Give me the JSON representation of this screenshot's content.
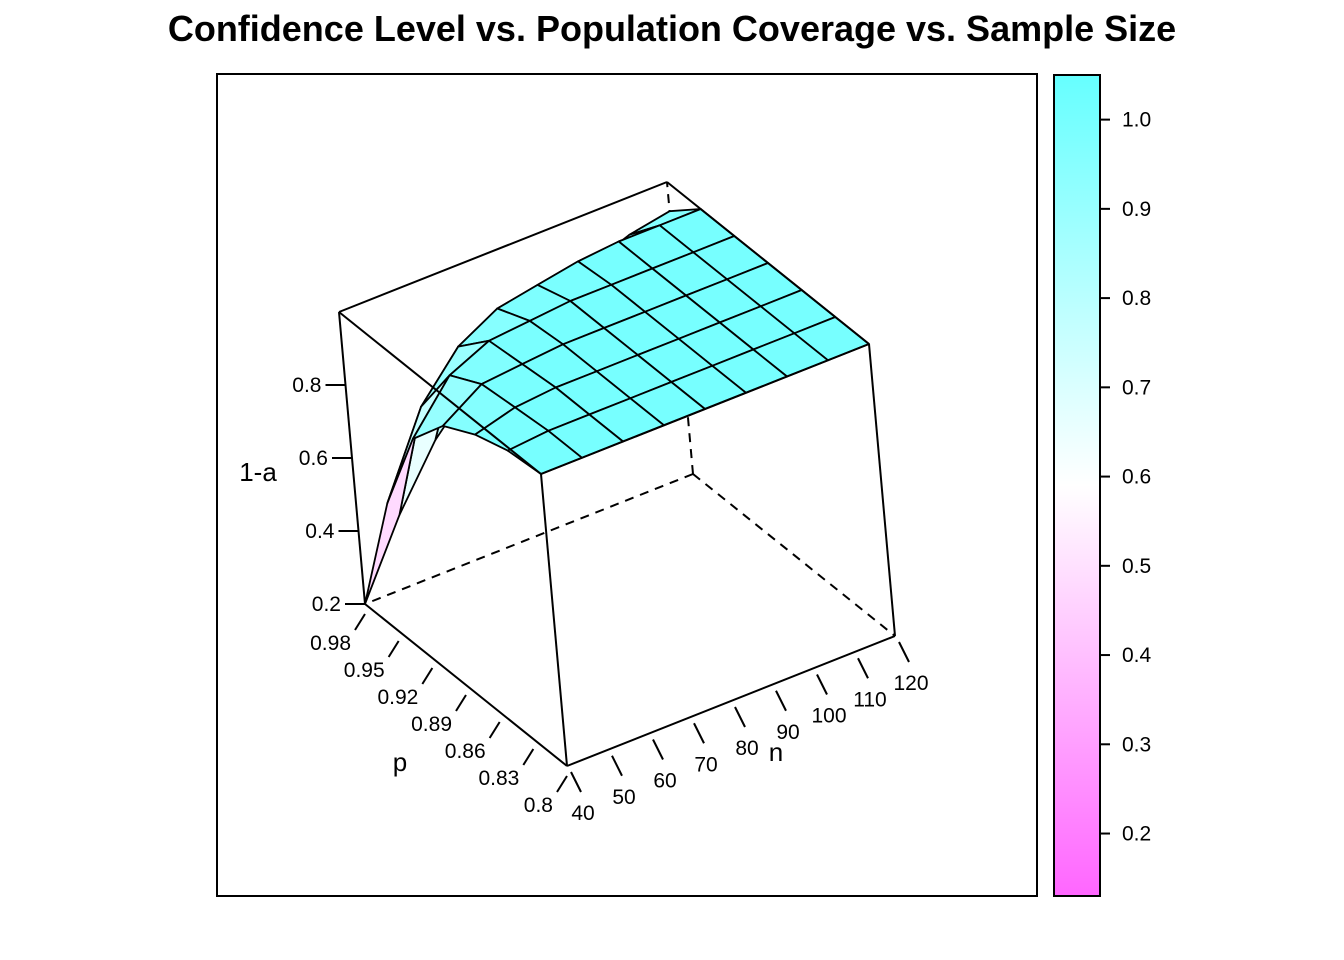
{
  "chart_data": {
    "type": "surface3d",
    "title": "Confidence Level vs. Population Coverage vs. Sample Size",
    "zlabel": "1-a",
    "xlabel": "p",
    "ylabel": "n",
    "p_values": [
      0.98,
      0.95,
      0.92,
      0.89,
      0.86,
      0.83,
      0.8
    ],
    "p_tick_labels": [
      "0.98",
      "0.95",
      "0.92",
      "0.89",
      "0.86",
      "0.83",
      "0.8"
    ],
    "n_values": [
      40,
      50,
      60,
      70,
      80,
      90,
      100,
      110,
      120
    ],
    "n_tick_labels": [
      "40",
      "50",
      "60",
      "70",
      "80",
      "90",
      "100",
      "110",
      "120"
    ],
    "z_ticks": [
      0.2,
      0.4,
      0.6,
      0.8
    ],
    "z_tick_labels": [
      "0.2",
      "0.4",
      "0.6",
      "0.8"
    ],
    "zlim": [
      0.2,
      1.0
    ],
    "surface_z": [
      [
        0.2,
        0.4,
        0.56,
        0.67,
        0.75,
        0.82,
        0.86,
        0.9,
        0.92
      ],
      [
        0.55,
        0.77,
        0.89,
        0.95,
        0.97,
        0.99,
        1.0,
        1.0,
        1.0
      ],
      [
        0.8,
        0.93,
        0.98,
        0.99,
        1.0,
        1.0,
        1.0,
        1.0,
        1.0
      ],
      [
        0.91,
        0.98,
        0.99,
        1.0,
        1.0,
        1.0,
        1.0,
        1.0,
        1.0
      ],
      [
        0.96,
        0.99,
        1.0,
        1.0,
        1.0,
        1.0,
        1.0,
        1.0,
        1.0
      ],
      [
        0.99,
        1.0,
        1.0,
        1.0,
        1.0,
        1.0,
        1.0,
        1.0,
        1.0
      ],
      [
        1.0,
        1.0,
        1.0,
        1.0,
        1.0,
        1.0,
        1.0,
        1.0,
        1.0
      ]
    ],
    "colorkey": {
      "range": [
        0.13,
        1.05
      ],
      "ticks": [
        0.2,
        0.3,
        0.4,
        0.5,
        0.6,
        0.7,
        0.8,
        0.9,
        1.0
      ],
      "tick_labels": [
        "0.2",
        "0.3",
        "0.4",
        "0.5",
        "0.6",
        "0.7",
        "0.8",
        "0.9",
        "1.0"
      ],
      "low_color": "#ff66ff",
      "mid_color": "#ffffff",
      "high_color": "#66ffff",
      "mid_value": 0.59
    }
  }
}
